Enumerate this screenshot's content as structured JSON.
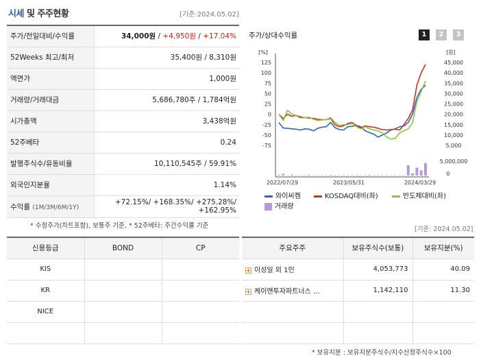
{
  "header": {
    "title_accent": "시세",
    "title_rest": " 및 주주현황",
    "date": "[기준:2024.05.02]"
  },
  "info": {
    "price_row": {
      "label": "주가/전일대비/수익률",
      "price": "34,000원",
      "sep1": " / ",
      "change": "+4,950원",
      "sep2": " / ",
      "rate": "+17.04%"
    },
    "w52": {
      "label": "52Weeks 최고/최저",
      "value": "35,400원 / 8,310원"
    },
    "par": {
      "label": "액면가",
      "value": "1,000원"
    },
    "volume": {
      "label": "거래량/거래대금",
      "value": "5,686,780주 / 1,784억원"
    },
    "marketcap": {
      "label": "시가총액",
      "value": "3,438억원"
    },
    "beta": {
      "label": "52주베타",
      "value": "0.24"
    },
    "shares": {
      "label": "발행주식수/유동비율",
      "value": "10,110,545주 / 59.91%"
    },
    "foreign": {
      "label": "외국인지분율",
      "value": "1.14%"
    },
    "returns": {
      "label": "수익률",
      "label_sub": "(1M/3M/6M/1Y)",
      "line1": "+72.15%/ +168.35%/ +275.28%/",
      "line2": "+162.95%"
    }
  },
  "note_left": "* 수정주가(차트포함), 보통주 기준, * 52주베타: 주간수익률 기준",
  "chart_panel": {
    "title": "주가/상대수익률",
    "pages": [
      "1",
      "2",
      "3"
    ]
  },
  "chart_data": {
    "type": "line",
    "left_unit": "[%]",
    "right_unit": "[원]",
    "left_ticks": [
      "125",
      "100",
      "75",
      "50",
      "25",
      "0",
      "-25",
      "-50",
      "-75"
    ],
    "right_ticks": [
      "45,000",
      "40,000",
      "35,000",
      "30,000",
      "25,000",
      "20,000",
      "15,000",
      "10,000",
      "5,000"
    ],
    "volume_ticks": [
      "5,000,000",
      "0"
    ],
    "x_labels": [
      "2022/07/29",
      "2023/05/31",
      "2024/03/29"
    ],
    "ylim": [
      -75,
      125
    ],
    "series": [
      {
        "name": "와이씨켐",
        "color": "#2a63c6",
        "values": [
          -20,
          -33,
          -34,
          -35,
          -36,
          -38,
          -35,
          -36,
          -40,
          -34,
          -31,
          -30,
          -20,
          -32,
          -37,
          -38,
          -30,
          -29,
          -27,
          -30,
          -40,
          -44,
          -48,
          -55,
          -50,
          -45,
          -38,
          -35,
          -30,
          -28,
          -20,
          0,
          40,
          60,
          70
        ]
      },
      {
        "name": "KOSDAQ대비(좌)",
        "color": "#c8321b",
        "values": [
          0,
          -10,
          0,
          -5,
          -3,
          -8,
          -8,
          -9,
          -10,
          -12,
          -13,
          -13,
          -10,
          -25,
          -30,
          -28,
          -22,
          -20,
          -27,
          -33,
          -28,
          -30,
          -31,
          -34,
          -37,
          -38,
          -37,
          -36,
          -38,
          -25,
          -10,
          10,
          70,
          100,
          120
        ]
      },
      {
        "name": "반도체대비(좌)",
        "color": "#8cc43c",
        "values": [
          0,
          -15,
          10,
          0,
          -3,
          -5,
          -8,
          -7,
          -12,
          -15,
          -14,
          -13,
          -8,
          -20,
          -27,
          -25,
          -25,
          -22,
          -30,
          -35,
          -30,
          -35,
          -38,
          -40,
          -45,
          -55,
          -60,
          -58,
          -45,
          -40,
          -35,
          -20,
          30,
          55,
          80
        ]
      }
    ],
    "volume": {
      "name": "거래량",
      "color": "#b59bdb",
      "values": [
        0.2,
        0.6,
        0.1,
        0.3,
        0.1,
        0.1,
        0.1,
        0.2,
        0.1,
        0.1,
        0.1,
        0.1,
        0.2,
        0.1,
        0.1,
        0.1,
        0.1,
        0.1,
        0.1,
        0.1,
        0.1,
        0.2,
        0.1,
        0.1,
        0.1,
        0.1,
        0.1,
        0.1,
        0.1,
        0.1,
        3.6,
        0.8,
        2.7,
        1.8,
        4.3
      ]
    }
  },
  "legend": [
    "와이씨켐",
    "KOSDAQ대비(좌)",
    "반도체대비(좌)",
    "거래량"
  ],
  "credit": {
    "headers": [
      "신용등급",
      "BOND",
      "CP"
    ],
    "rows": [
      [
        "KIS",
        "",
        ""
      ],
      [
        "KR",
        "",
        ""
      ],
      [
        "NICE",
        "",
        ""
      ],
      [
        "",
        "",
        ""
      ]
    ]
  },
  "holders": {
    "date": "[기준: 2024.05.02]",
    "headers": [
      "주요주주",
      "보유주식수(보통)",
      "보유지분(%)"
    ],
    "rows": [
      {
        "name": "이성일 외 1인",
        "shares": "4,053,773",
        "pct": "40.09"
      },
      {
        "name": "케이앤투자파트너스 ...",
        "shares": "1,142,110",
        "pct": "11.30"
      }
    ]
  },
  "note_right": "* 보유지분 : 보유지분주식수/지수산정주식수×100"
}
